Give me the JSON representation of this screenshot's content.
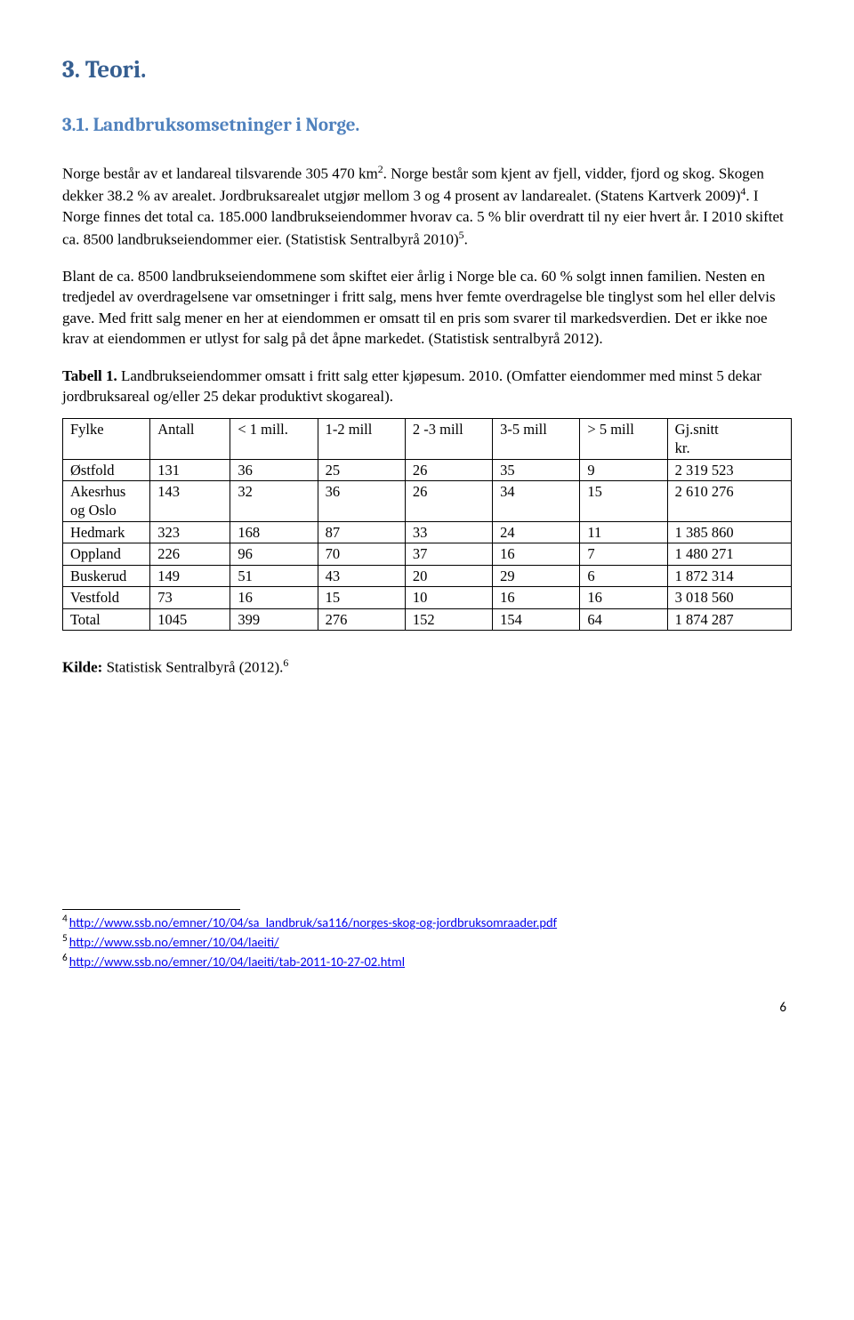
{
  "section": {
    "number": "3.",
    "title": "Teori."
  },
  "subsection": {
    "number": "3.1.",
    "title": "Landbruksomsetninger i Norge."
  },
  "paragraphs": {
    "p1a": "Norge består av et landareal tilsvarende 305 470 km",
    "p1a_sup": "2",
    "p1b": ". Norge består som kjent av fjell, vidder, fjord og skog. Skogen dekker 38.2 % av arealet. Jordbruksarealet utgjør mellom 3 og 4 prosent av landarealet. (Statens Kartverk 2009)",
    "p1b_sup": "4",
    "p1c": ". I Norge finnes det total ca. 185.000 landbrukseiendommer hvorav ca. 5 % blir overdratt til ny eier hvert år. I 2010 skiftet ca. 8500 landbrukseiendommer eier. (Statistisk Sentralbyrå 2010)",
    "p1c_sup": "5",
    "p1d": ".",
    "p2": "Blant de ca. 8500 landbrukseiendommene som skiftet eier årlig i Norge ble ca. 60 % solgt innen familien. Nesten en tredjedel av overdragelsene var omsetninger i fritt salg, mens hver femte overdragelse ble tinglyst som hel eller delvis gave. Med fritt salg mener en her at eiendommen er omsatt til en pris som svarer til markedsverdien. Det er ikke noe krav at eiendommen er utlyst for salg på det åpne markedet. (Statistisk sentralbyrå 2012).",
    "p3_label": "Tabell 1.",
    "p3_rest": " Landbrukseiendommer omsatt i fritt salg etter kjøpesum. 2010. (Omfatter eiendommer med minst 5 dekar jordbruksareal og/eller 25 dekar produktivt skogareal)."
  },
  "table": {
    "columns": [
      "Fylke",
      "Antall",
      "< 1 mill.",
      "1-2 mill",
      "2 -3 mill",
      "3-5 mill",
      "> 5 mill",
      "Gj.snitt kr."
    ],
    "col_widths": [
      "12%",
      "11%",
      "12%",
      "12%",
      "12%",
      "12%",
      "12%",
      "17%"
    ],
    "rows": [
      [
        "Østfold",
        "131",
        "36",
        "25",
        "26",
        "35",
        "9",
        "2 319 523"
      ],
      [
        "Akesrhus og Oslo",
        "143",
        "32",
        "36",
        "26",
        "34",
        "15",
        "2 610 276"
      ],
      [
        "Hedmark",
        "323",
        "168",
        "87",
        "33",
        "24",
        "11",
        "1 385 860"
      ],
      [
        "Oppland",
        "226",
        "96",
        "70",
        "37",
        "16",
        "7",
        "1 480 271"
      ],
      [
        "Buskerud",
        "149",
        "51",
        "43",
        "20",
        "29",
        "6",
        "1 872 314"
      ],
      [
        "Vestfold",
        "73",
        "16",
        "15",
        "10",
        "16",
        "16",
        "3 018 560"
      ],
      [
        "Total",
        "1045",
        "399",
        "276",
        "152",
        "154",
        "64",
        "1 874 287"
      ]
    ]
  },
  "source": {
    "label": "Kilde:",
    "text": " Statistisk Sentralbyrå (2012).",
    "sup": "6"
  },
  "footnotes": [
    {
      "n": "4",
      "href": "http://www.ssb.no/emner/10/04/sa_landbruk/sa116/norges-skog-og-jordbruksomraader.pdf"
    },
    {
      "n": "5",
      "href": "http://www.ssb.no/emner/10/04/laeiti/"
    },
    {
      "n": "6",
      "href": "http://www.ssb.no/emner/10/04/laeiti/tab-2011-10-27-02.html"
    }
  ],
  "page_number": "6"
}
